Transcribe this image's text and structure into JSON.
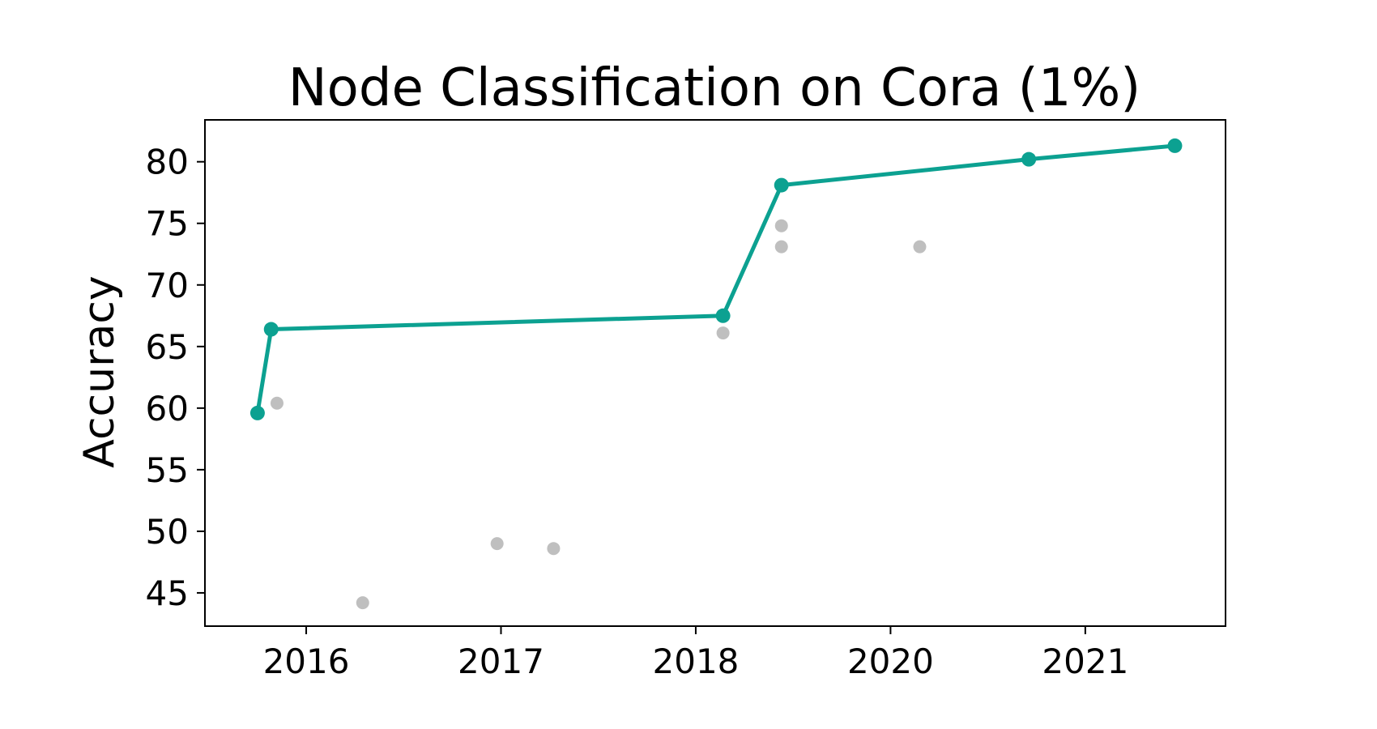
{
  "chart_data": {
    "type": "scatter",
    "title": "Node Classification on Cora (1%)",
    "xlabel": "",
    "ylabel": "Accuracy",
    "x_ticks": [
      {
        "value": 0.0,
        "label": "2016"
      },
      {
        "value": 1.0,
        "label": "2017"
      },
      {
        "value": 2.0,
        "label": "2018"
      },
      {
        "value": 3.0,
        "label": "2020"
      },
      {
        "value": 4.0,
        "label": "2021"
      }
    ],
    "y_ticks": [
      45,
      50,
      55,
      60,
      65,
      70,
      75,
      80
    ],
    "xlim": [
      -0.52,
      4.72
    ],
    "ylim": [
      42.3,
      83.4
    ],
    "grid": false,
    "series": [
      {
        "color": "#0ca191",
        "style": "line-markers",
        "points": [
          {
            "x": -0.25,
            "y": 59.6
          },
          {
            "x": -0.18,
            "y": 66.4
          },
          {
            "x": 2.14,
            "y": 67.5
          },
          {
            "x": 2.44,
            "y": 78.1
          },
          {
            "x": 3.71,
            "y": 80.2
          },
          {
            "x": 4.46,
            "y": 81.3
          }
        ]
      },
      {
        "color": "#bfbfbf",
        "style": "markers",
        "points": [
          {
            "x": -0.15,
            "y": 60.4
          },
          {
            "x": 0.29,
            "y": 44.2
          },
          {
            "x": 0.98,
            "y": 49.0
          },
          {
            "x": 1.27,
            "y": 48.6
          },
          {
            "x": 2.14,
            "y": 66.1
          },
          {
            "x": 2.44,
            "y": 74.8
          },
          {
            "x": 2.44,
            "y": 73.1
          },
          {
            "x": 3.15,
            "y": 73.1
          }
        ]
      }
    ]
  }
}
